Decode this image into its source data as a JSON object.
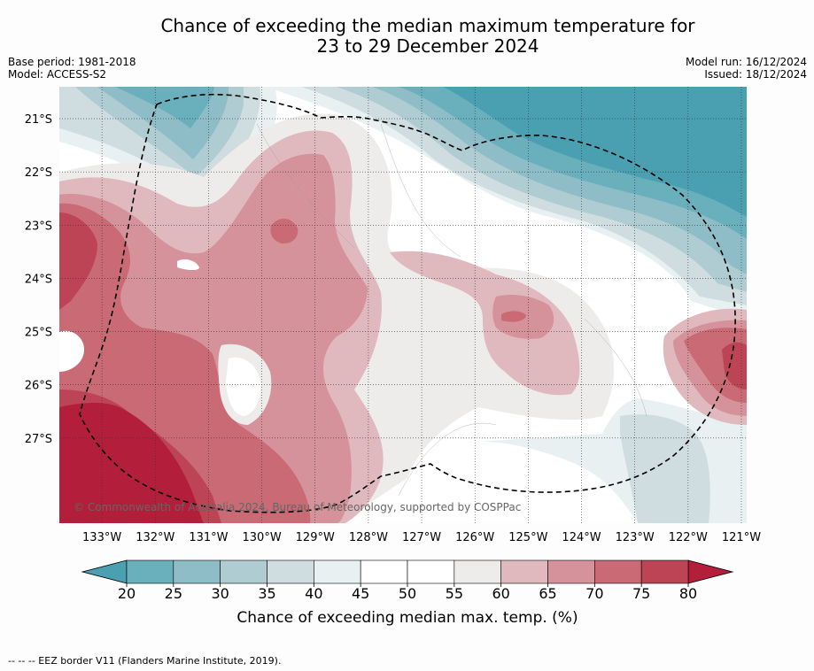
{
  "header": {
    "title_line1": "Chance of exceeding the median maximum temperature for",
    "title_line2": "23 to 29 December 2024",
    "base_period": "Base period: 1981-2018",
    "model": "Model: ACCESS-S2",
    "model_run": "Model run: 16/12/2024",
    "issued": "Issued: 18/12/2024"
  },
  "copyright": "© Commonwealth of Australia 2024, Bureau of Meteorology, supported by COSPPac",
  "footer": "--  --  -- EEZ border V11 (Flanders Marine Institute, 2019).",
  "chart_data": {
    "type": "heatmap",
    "x_ticks": [
      "133°W",
      "132°W",
      "131°W",
      "130°W",
      "129°W",
      "128°W",
      "127°W",
      "126°W",
      "125°W",
      "124°W",
      "123°W",
      "122°W",
      "121°W"
    ],
    "y_ticks": [
      "21°S",
      "22°S",
      "23°S",
      "24°S",
      "25°S",
      "26°S",
      "27°S"
    ],
    "xlim": [
      -133.8,
      -120.9
    ],
    "ylim": [
      -28.6,
      -20.4
    ],
    "colorbar": {
      "label": "Chance of exceeding median max. temp. (%)",
      "ticks": [
        20,
        25,
        30,
        35,
        40,
        45,
        50,
        55,
        60,
        65,
        70,
        75,
        80
      ],
      "bins": [
        {
          "range": [
            20,
            25
          ],
          "color": "#6aafbc"
        },
        {
          "range": [
            25,
            30
          ],
          "color": "#8ebdc7"
        },
        {
          "range": [
            30,
            35
          ],
          "color": "#aeccd1"
        },
        {
          "range": [
            35,
            40
          ],
          "color": "#cfdde0"
        },
        {
          "range": [
            40,
            45
          ],
          "color": "#e9f0f2"
        },
        {
          "range": [
            45,
            50
          ],
          "color": "#ffffff"
        },
        {
          "range": [
            50,
            55
          ],
          "color": "#ffffff"
        },
        {
          "range": [
            55,
            60
          ],
          "color": "#eeeceb"
        },
        {
          "range": [
            60,
            65
          ],
          "color": "#e0b9be"
        },
        {
          "range": [
            65,
            70
          ],
          "color": "#d6929a"
        },
        {
          "range": [
            70,
            75
          ],
          "color": "#c96a75"
        },
        {
          "range": [
            75,
            80
          ],
          "color": "#bd4455"
        }
      ],
      "under_color": "#4aa0b1",
      "over_color": "#b31e3a"
    }
  }
}
